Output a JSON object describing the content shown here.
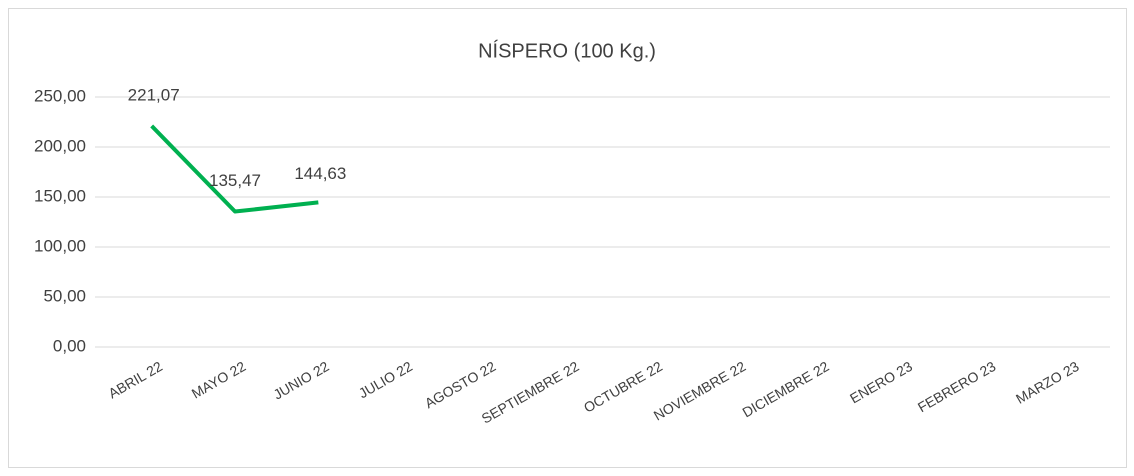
{
  "chart_data": {
    "type": "line",
    "title": "NÍSPERO (100 Kg.)",
    "categories": [
      "ABRIL 22",
      "MAYO 22",
      "JUNIO 22",
      "JULIO 22",
      "AGOSTO 22",
      "SEPTIEMBRE 22",
      "OCTUBRE 22",
      "NOVIEMBRE 22",
      "DICIEMBRE 22",
      "ENERO 23",
      "FEBRERO 23",
      "MARZO 23"
    ],
    "series": [
      {
        "color": "#00b050",
        "values": [
          221.07,
          135.47,
          144.63,
          null,
          null,
          null,
          null,
          null,
          null,
          null,
          null,
          null
        ],
        "value_labels": [
          "221,07",
          "135,47",
          "144,63",
          null,
          null,
          null,
          null,
          null,
          null,
          null,
          null,
          null
        ]
      }
    ],
    "ylim": [
      0,
      250
    ],
    "yticks": [
      {
        "value": 0,
        "label": "0,00"
      },
      {
        "value": 50,
        "label": "50,00"
      },
      {
        "value": 100,
        "label": "100,00"
      },
      {
        "value": 150,
        "label": "150,00"
      },
      {
        "value": 200,
        "label": "200,00"
      },
      {
        "value": 250,
        "label": "250,00"
      }
    ],
    "grid": true
  }
}
